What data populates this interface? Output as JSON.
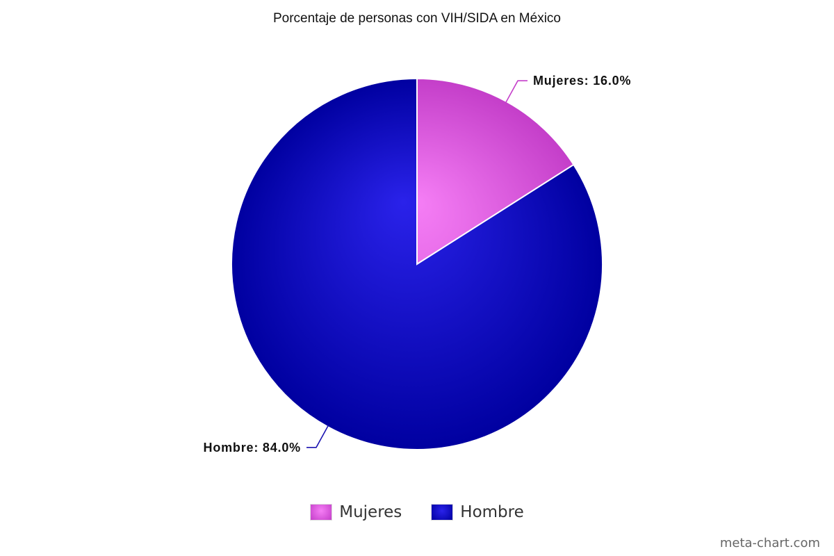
{
  "chart_data": {
    "type": "pie",
    "title": "Porcentaje de personas con VIH/SIDA en México",
    "categories": [
      "Mujeres",
      "Hombre"
    ],
    "values": [
      16.0,
      84.0
    ],
    "data_labels": [
      "Mujeres: 16.0%",
      "Hombre: 84.0%"
    ],
    "colors": [
      "#e65ce6",
      "#1a12d9"
    ],
    "legend": "bottom"
  },
  "watermark": "meta-chart.com"
}
